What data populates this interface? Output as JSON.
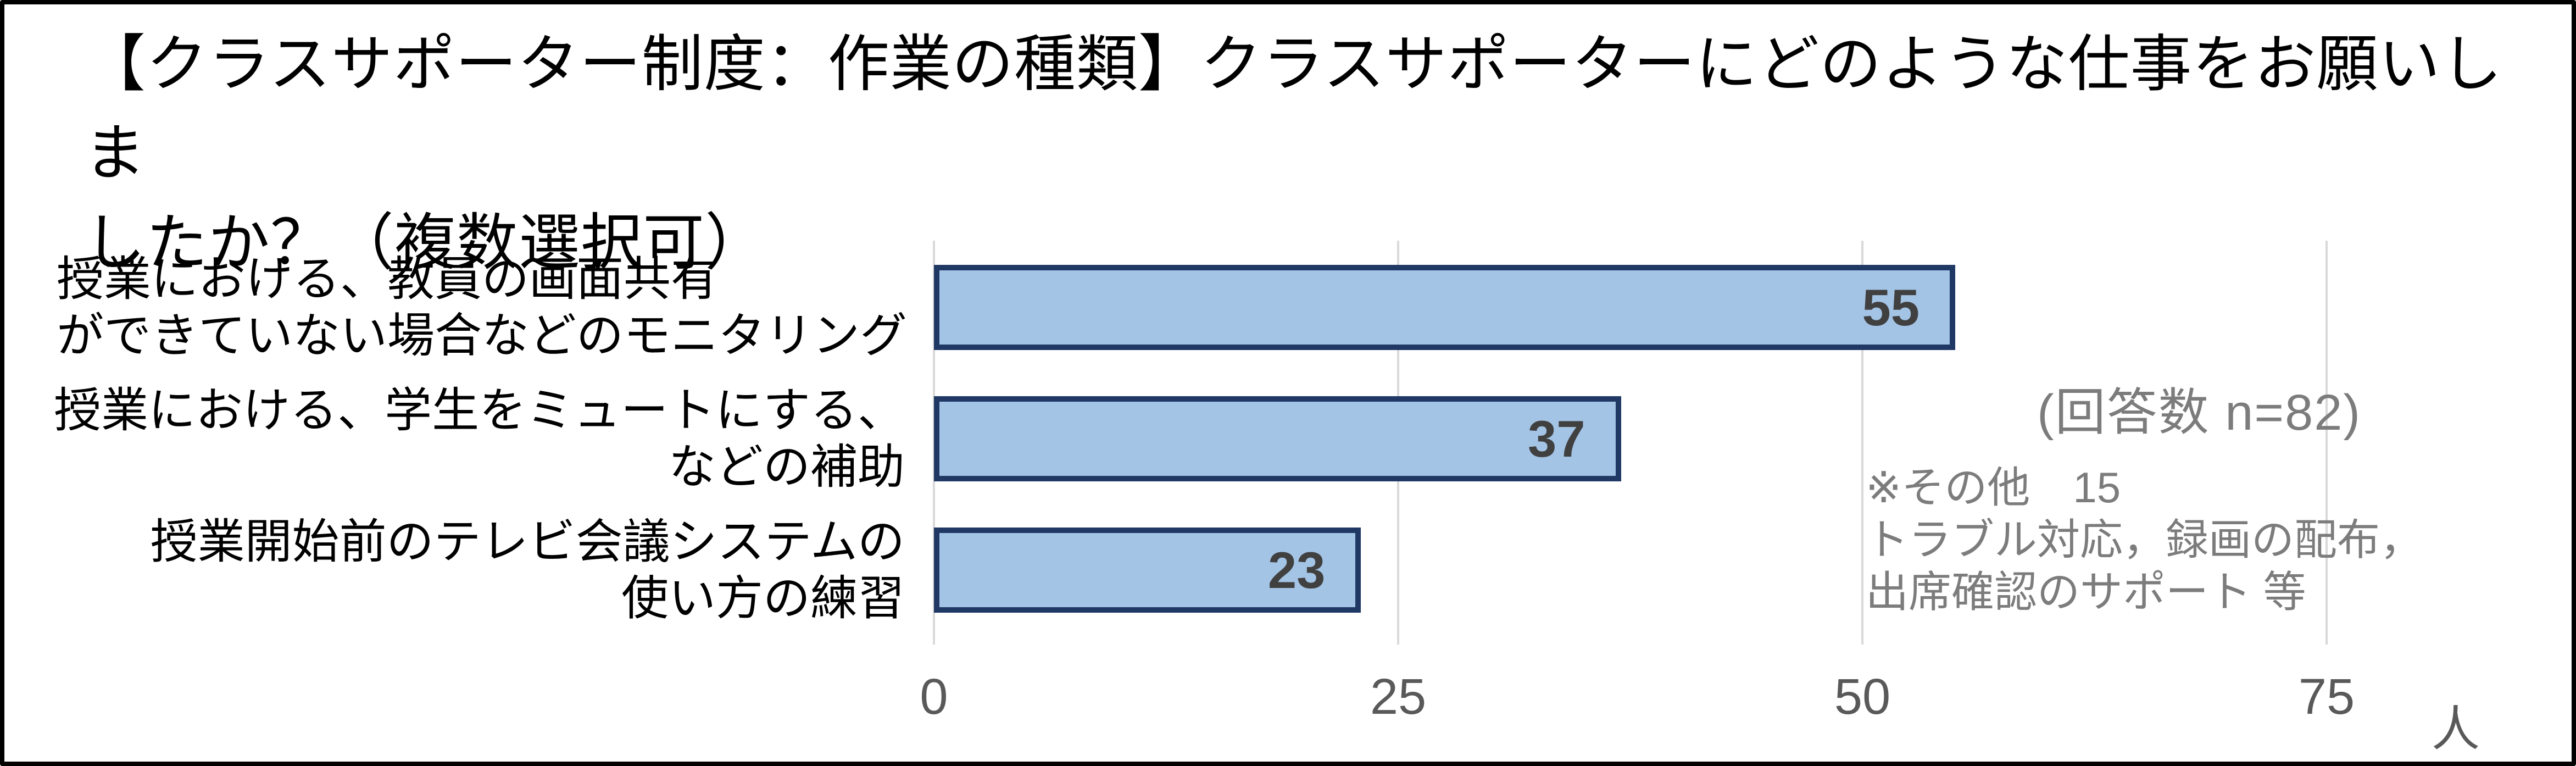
{
  "chart_data": {
    "type": "bar",
    "orientation": "horizontal",
    "title_lines": [
      "【クラスサポーター制度：作業の種類】クラスサポーターにどのような仕事をお願いしま",
      "したか？（複数選択可）"
    ],
    "title": "【クラスサポーター制度：作業の種類】クラスサポーターにどのような仕事をお願いしましたか？（複数選択可）",
    "categories": [
      "授業における、教員の画面共有\nができていない場合などのモニタリング",
      "授業における、学生をミュートにする、\nなどの補助",
      "授業開始前のテレビ会議システムの\n使い方の練習"
    ],
    "values": [
      55,
      37,
      23
    ],
    "xticks": [
      0,
      25,
      50,
      75
    ],
    "xlim": [
      0,
      80
    ],
    "x_unit": "人",
    "grid": true,
    "legend": false,
    "annotations": {
      "response_count": "(回答数 n=82)",
      "other_note_lines": [
        "※その他　15",
        "トラブル対応，録画の配布，",
        "出席確認のサポート 等"
      ]
    },
    "colors": {
      "bar_fill": "#A4C4E6",
      "bar_border": "#1F3864",
      "gridline": "#D9D9D9",
      "value_label": "#404040",
      "tick_label": "#595959",
      "annotation_text": "#7C7C7C",
      "title_text": "#000000",
      "frame_border": "#000000",
      "background": "#FFFFFF"
    }
  }
}
